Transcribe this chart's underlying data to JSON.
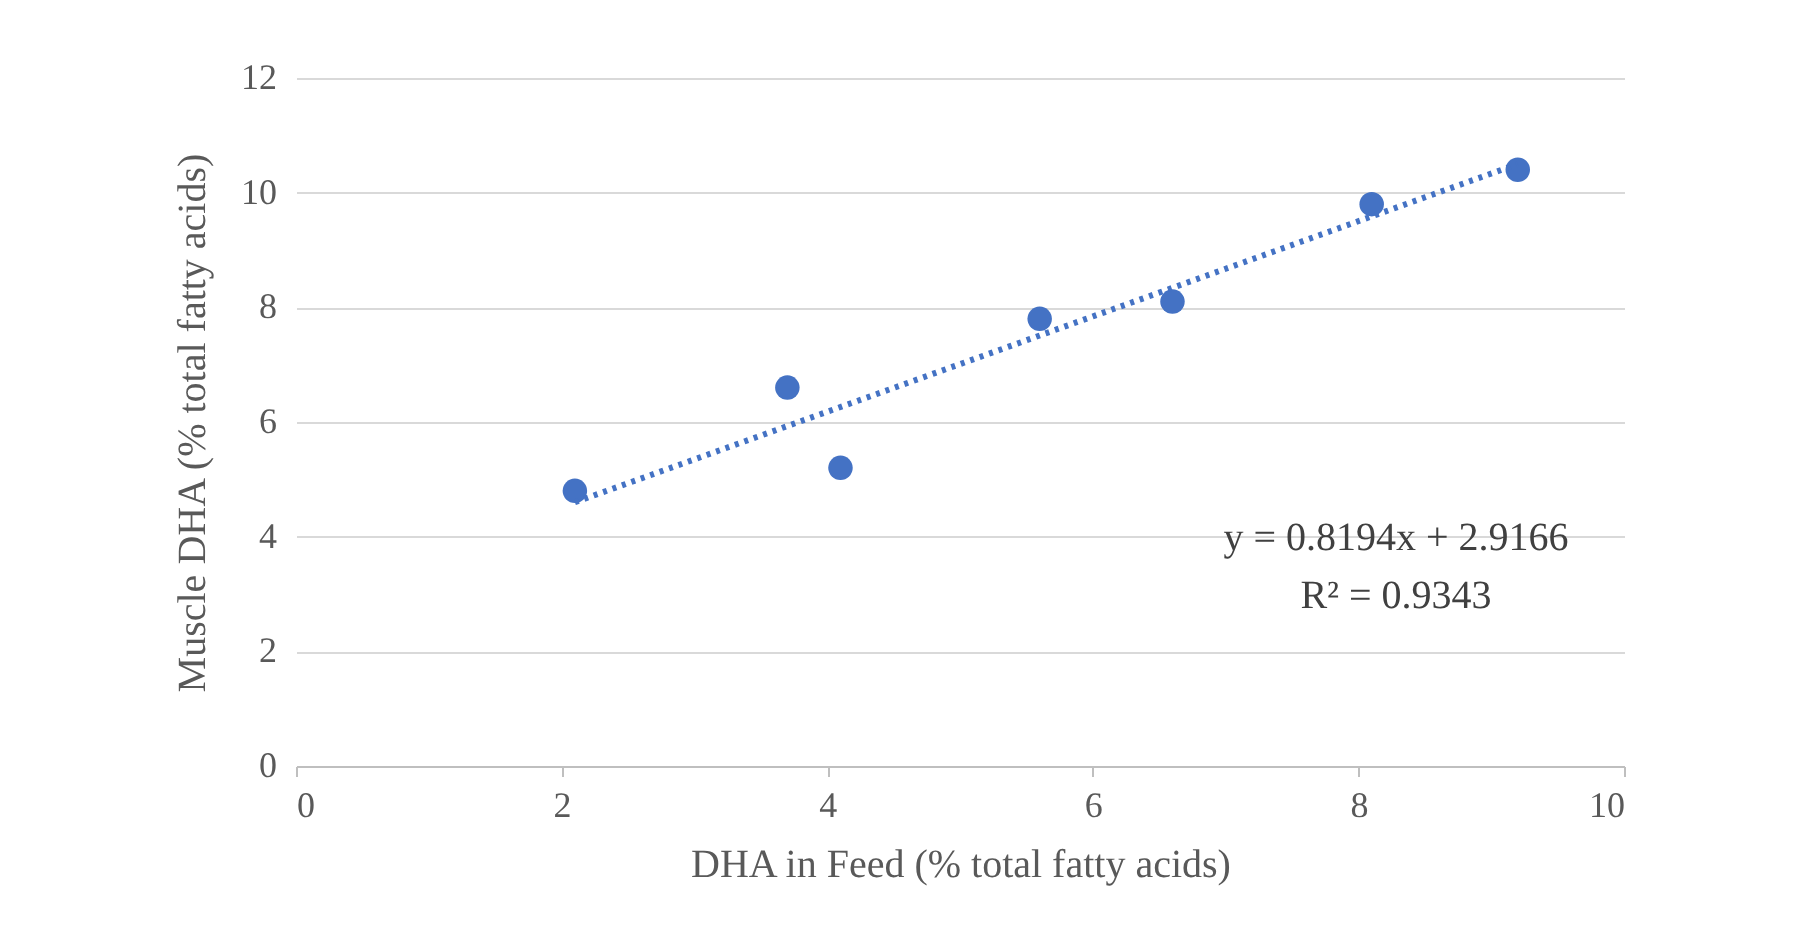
{
  "chart_data": {
    "type": "scatter",
    "xlabel": "DHA in Feed (% total fatty acids)",
    "ylabel": "Muscle DHA (% total fatty acids)",
    "xlim": [
      0,
      10
    ],
    "xticks": [
      0,
      2,
      4,
      6,
      8,
      10
    ],
    "ylim": [
      0,
      12
    ],
    "yticks": [
      0,
      2,
      4,
      6,
      8,
      10,
      12
    ],
    "grid": "y",
    "x": [
      2.1,
      3.7,
      4.1,
      5.6,
      6.6,
      8.1,
      9.2
    ],
    "series": [
      {
        "color": "#4472c4",
        "marker": "circle",
        "values": [
          4.8,
          6.6,
          5.2,
          7.8,
          8.1,
          9.8,
          10.4
        ]
      },
      {
        "type": "line",
        "color": "#4472c4",
        "line_style": "dotted",
        "x": [
          2.1,
          9.2
        ],
        "values": [
          4.6,
          10.5
        ]
      }
    ],
    "annotations": [
      "y = 0.8194x + 2.9166",
      "R² = 0.9343"
    ]
  }
}
